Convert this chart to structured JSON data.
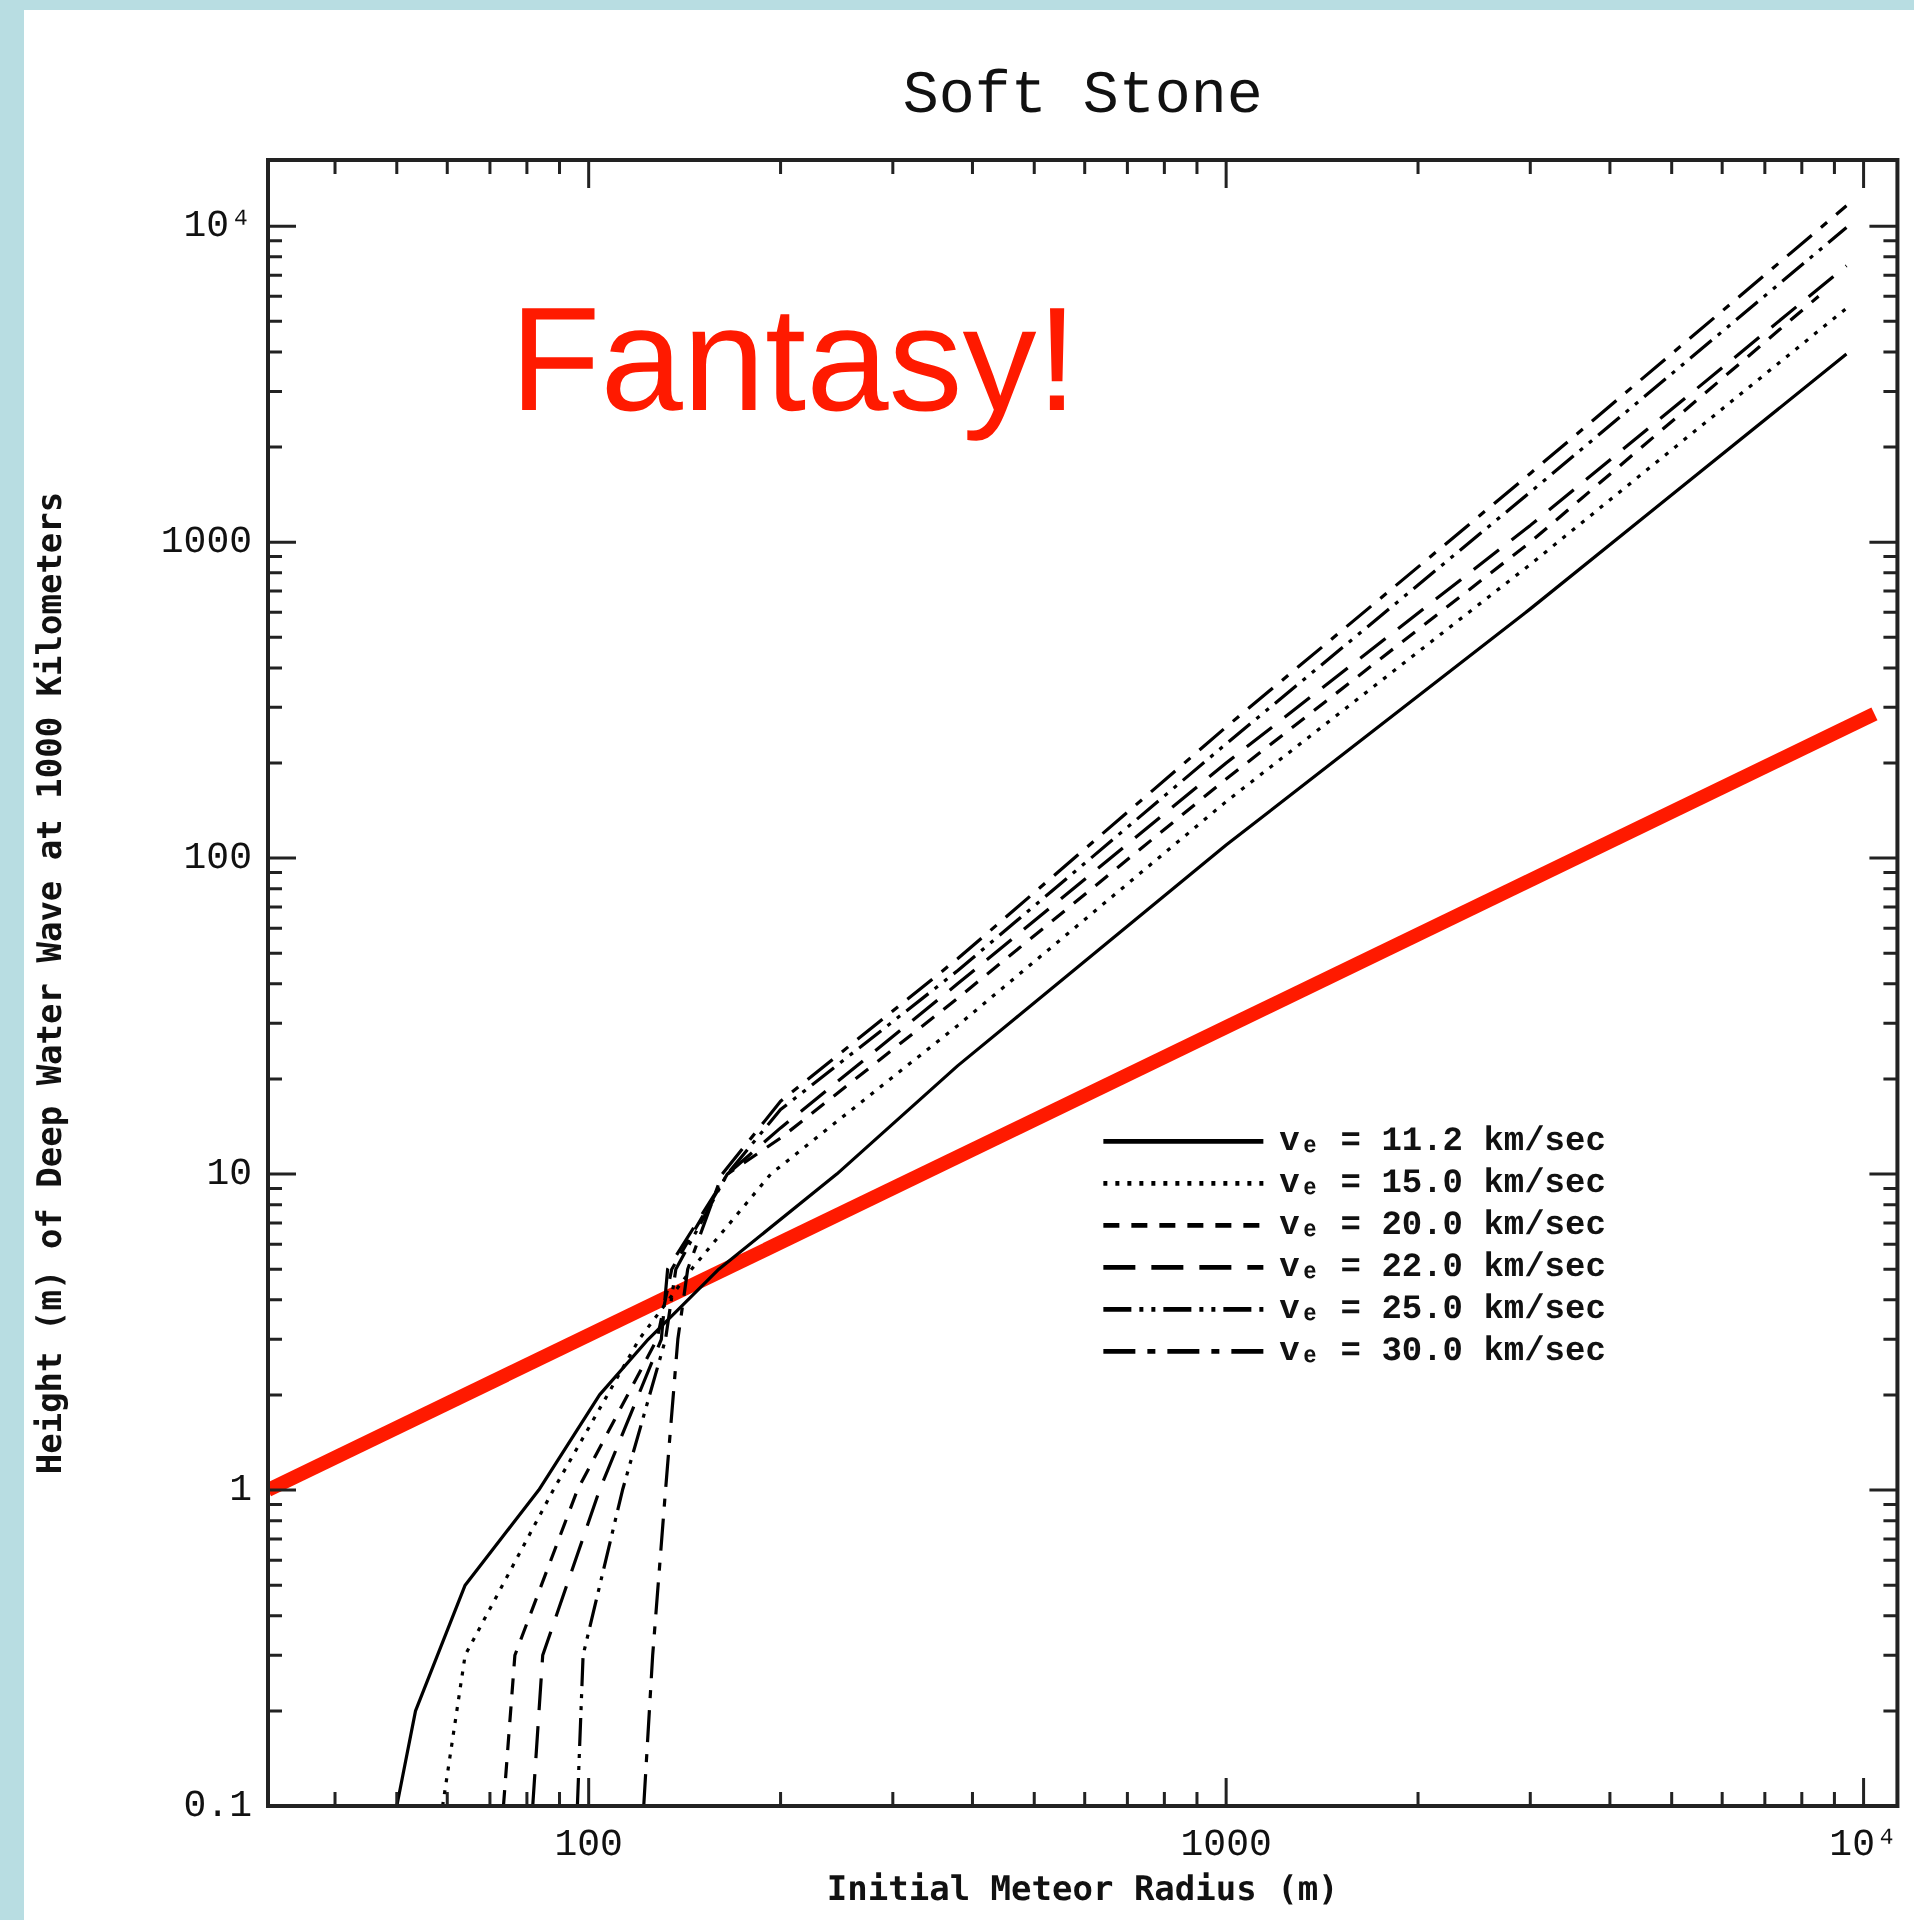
{
  "chart_data": {
    "type": "line",
    "title": "Soft Stone",
    "xlabel": "Initial Meteor Radius (m)",
    "ylabel": "Height (m) of Deep Water Wave at 1000 Kilometers",
    "log": "xy",
    "grid": false,
    "marker": "none",
    "legend": "right",
    "xlim": [
      31.4,
      11300
    ],
    "ylim": [
      0.1,
      16200
    ],
    "xticks": [
      {
        "value": 40,
        "label": null
      },
      {
        "value": 50,
        "label": null
      },
      {
        "value": 60,
        "label": null
      },
      {
        "value": 70,
        "label": null
      },
      {
        "value": 80,
        "label": null
      },
      {
        "value": 90,
        "label": null
      },
      100,
      {
        "value": 200,
        "label": null
      },
      {
        "value": 300,
        "label": null
      },
      {
        "value": 400,
        "label": null
      },
      {
        "value": 500,
        "label": null
      },
      {
        "value": 600,
        "label": null
      },
      {
        "value": 700,
        "label": null
      },
      {
        "value": 800,
        "label": null
      },
      {
        "value": 900,
        "label": null
      },
      1000,
      {
        "value": 2000,
        "label": null
      },
      {
        "value": 3000,
        "label": null
      },
      {
        "value": 4000,
        "label": null
      },
      {
        "value": 5000,
        "label": null
      },
      {
        "value": 6000,
        "label": null
      },
      {
        "value": 7000,
        "label": null
      },
      {
        "value": 8000,
        "label": null
      },
      {
        "value": 9000,
        "label": null
      },
      {
        "value": 10000,
        "label": "10⁴"
      }
    ],
    "yticks": [
      0.1,
      {
        "value": 0.2,
        "label": null
      },
      {
        "value": 0.3,
        "label": null
      },
      {
        "value": 0.4,
        "label": null
      },
      {
        "value": 0.5,
        "label": null
      },
      {
        "value": 0.6,
        "label": null
      },
      {
        "value": 0.7,
        "label": null
      },
      {
        "value": 0.8,
        "label": null
      },
      {
        "value": 0.9,
        "label": null
      },
      1,
      {
        "value": 2,
        "label": null
      },
      {
        "value": 3,
        "label": null
      },
      {
        "value": 4,
        "label": null
      },
      {
        "value": 5,
        "label": null
      },
      {
        "value": 6,
        "label": null
      },
      {
        "value": 7,
        "label": null
      },
      {
        "value": 8,
        "label": null
      },
      {
        "value": 9,
        "label": null
      },
      10,
      {
        "value": 20,
        "label": null
      },
      {
        "value": 30,
        "label": null
      },
      {
        "value": 40,
        "label": null
      },
      {
        "value": 50,
        "label": null
      },
      {
        "value": 60,
        "label": null
      },
      {
        "value": 70,
        "label": null
      },
      {
        "value": 80,
        "label": null
      },
      {
        "value": 90,
        "label": null
      },
      100,
      {
        "value": 200,
        "label": null
      },
      {
        "value": 300,
        "label": null
      },
      {
        "value": 400,
        "label": null
      },
      {
        "value": 500,
        "label": null
      },
      {
        "value": 600,
        "label": null
      },
      {
        "value": 700,
        "label": null
      },
      {
        "value": 800,
        "label": null
      },
      {
        "value": 900,
        "label": null
      },
      1000,
      {
        "value": 2000,
        "label": null
      },
      {
        "value": 3000,
        "label": null
      },
      {
        "value": 4000,
        "label": null
      },
      {
        "value": 5000,
        "label": null
      },
      {
        "value": 6000,
        "label": null
      },
      {
        "value": 7000,
        "label": null
      },
      {
        "value": 8000,
        "label": null
      },
      {
        "value": 9000,
        "label": null
      },
      {
        "value": 10000,
        "label": "10⁴"
      }
    ],
    "series": [
      {
        "name": "vₑ = 11.2 km/sec",
        "color": "#000000",
        "line_style": "solid",
        "x": [
          50,
          53.5,
          64,
          83.5,
          104,
          124,
          160,
          245,
          379,
          1000,
          3000,
          9400
        ],
        "values": [
          0.1,
          0.2,
          0.5,
          1,
          2,
          3,
          5,
          10,
          22,
          110,
          615,
          3940
        ]
      },
      {
        "name": "vₑ = 15.0 km/sec",
        "color": "#000000",
        "line_style": "dotted",
        "x": [
          59,
          64,
          88,
          120,
          145,
          193,
          379,
          1000,
          3000,
          9400
        ],
        "values": [
          0.1,
          0.3,
          1,
          3,
          5,
          10,
          29.5,
          151,
          850,
          5500
        ]
      },
      {
        "name": "vₑ = 20.0 km/sec",
        "color": "#000000",
        "line_style": "dashed",
        "x": [
          73.5,
          76.6,
          96,
          128,
          135,
          165,
          200,
          379,
          1000,
          3000,
          8500
        ],
        "values": [
          0.1,
          0.3,
          1,
          3,
          5,
          10,
          13,
          36,
          178,
          1000,
          6000
        ]
      },
      {
        "name": "vₑ = 22.0 km/sec",
        "color": "#000000",
        "line_style": "longdash",
        "x": [
          81.7,
          84.7,
          104,
          130,
          133,
          165,
          200,
          379,
          1000,
          3000,
          9400
        ],
        "values": [
          0.1,
          0.3,
          1,
          3,
          5,
          10,
          14,
          40,
          200,
          1130,
          7500
        ]
      },
      {
        "name": "vₑ = 25.0 km/sec",
        "color": "#000000",
        "line_style": "dashdotdot",
        "x": [
          96,
          98,
          113,
          132,
          137,
          165,
          200,
          379,
          1000,
          3000,
          9400
        ],
        "values": [
          0.1,
          0.3,
          1,
          3,
          5,
          10,
          16,
          44,
          230,
          1440,
          9900
        ]
      },
      {
        "name": "vₑ = 30.0 km/sec",
        "color": "#000000",
        "line_style": "dashdot",
        "x": [
          122,
          126,
          132,
          138,
          143,
          162,
          200,
          379,
          1000,
          3000,
          9400
        ],
        "values": [
          0.1,
          0.3,
          1,
          3,
          5,
          10,
          17,
          48,
          260,
          1650,
          11600
        ]
      },
      {
        "color": "#ff1a00",
        "line_style": "solid",
        "x": [
          31.4,
          10400
        ],
        "values": [
          1.0,
          286
        ]
      }
    ],
    "annotations": [
      "Fantasy!"
    ]
  }
}
